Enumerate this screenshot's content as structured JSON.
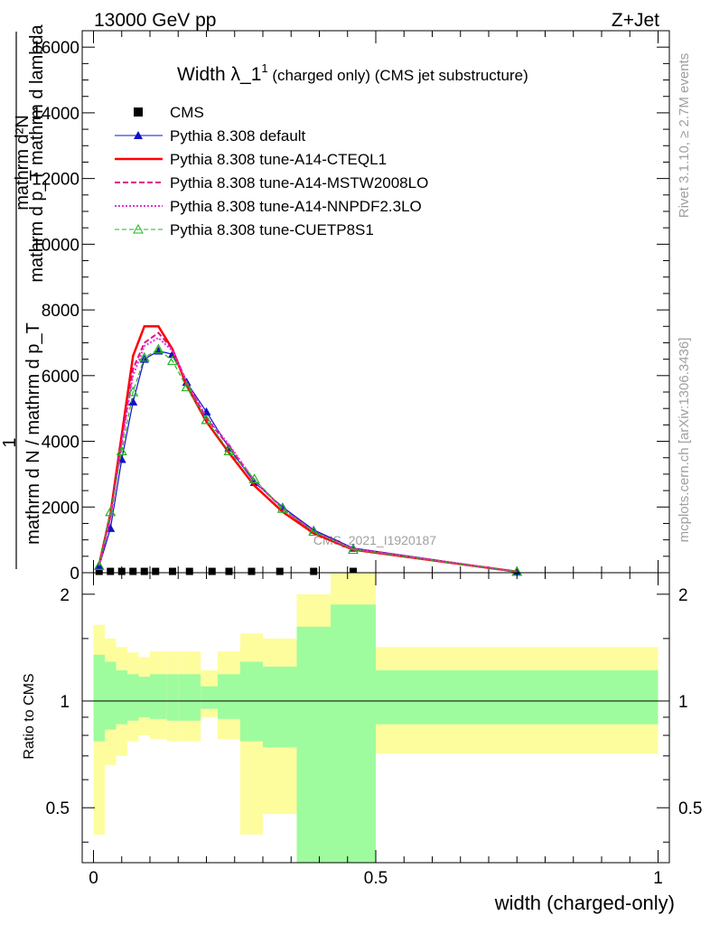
{
  "header": {
    "energy": "13000 GeV pp",
    "process": "Z+Jet"
  },
  "side_labels": {
    "rivet": "Rivet 3.1.10, ≥ 2.7M events",
    "mcplots": "mcplots.cern.ch [arXiv:1306.3436]"
  },
  "chart_data": [
    {
      "type": "line",
      "title_main": "Width λ_1",
      "title_sup": "1",
      "title_sub": " (charged only) (CMS jet substructure)",
      "watermark": "CMS_2021_I1920187",
      "ylabel_numerator": "mathrm d²N",
      "ylabel_numerator_sub": "mathrm d p_T mathrm d lambda",
      "ylabel_denominator": "mathrm d N / mathrm d p_T",
      "ylabel_one": "1",
      "xlim": [
        -0.02,
        1.02
      ],
      "ylim": [
        0,
        16500
      ],
      "yticks": [
        0,
        2000,
        4000,
        6000,
        8000,
        10000,
        12000,
        14000,
        16000
      ],
      "ytick_labels": [
        "0",
        "2000",
        "4000",
        "6000",
        "8000",
        "10000",
        "12000",
        "14000",
        "16000"
      ],
      "legend_position": "top-left",
      "series": [
        {
          "name": "CMS",
          "color": "#000000",
          "style": "marker-square",
          "x": [
            0.01,
            0.03,
            0.05,
            0.07,
            0.09,
            0.11,
            0.14,
            0.17,
            0.21,
            0.24,
            0.28,
            0.33,
            0.39,
            0.46
          ],
          "y": [
            40,
            40,
            40,
            40,
            40,
            40,
            40,
            40,
            40,
            40,
            40,
            40,
            40,
            40
          ]
        },
        {
          "name": "Pythia 8.308 default",
          "color": "#1010c8",
          "style": "line-triangle",
          "x": [
            0.01,
            0.03,
            0.05,
            0.07,
            0.09,
            0.115,
            0.14,
            0.165,
            0.2,
            0.24,
            0.285,
            0.335,
            0.39,
            0.46,
            0.75
          ],
          "y": [
            200,
            1350,
            3450,
            5200,
            6500,
            6750,
            6650,
            5800,
            4900,
            3800,
            2750,
            2000,
            1300,
            750,
            30
          ]
        },
        {
          "name": "Pythia 8.308 tune-A14-CTEQL1",
          "color": "#ff0000",
          "style": "line-thick",
          "x": [
            0.01,
            0.03,
            0.05,
            0.07,
            0.09,
            0.115,
            0.14,
            0.165,
            0.2,
            0.24,
            0.285,
            0.335,
            0.39,
            0.46,
            0.75
          ],
          "y": [
            250,
            1800,
            4200,
            6600,
            7500,
            7500,
            6800,
            5700,
            4600,
            3650,
            2650,
            1850,
            1200,
            700,
            30
          ]
        },
        {
          "name": "Pythia 8.308 tune-A14-MSTW2008LO",
          "color": "#e0108c",
          "style": "line-dashed",
          "x": [
            0.01,
            0.03,
            0.05,
            0.07,
            0.09,
            0.115,
            0.14,
            0.165,
            0.2,
            0.24,
            0.285,
            0.335,
            0.39,
            0.46,
            0.75
          ],
          "y": [
            230,
            1700,
            4000,
            6200,
            7000,
            7300,
            6800,
            5800,
            4700,
            3850,
            2800,
            1950,
            1250,
            730,
            30
          ]
        },
        {
          "name": "Pythia 8.308 tune-A14-NNPDF2.3LO",
          "color": "#e832d2",
          "style": "line-dotted",
          "x": [
            0.01,
            0.03,
            0.05,
            0.07,
            0.09,
            0.115,
            0.14,
            0.165,
            0.2,
            0.24,
            0.285,
            0.335,
            0.39,
            0.46,
            0.75
          ],
          "y": [
            220,
            1650,
            3950,
            6000,
            6900,
            7150,
            6750,
            5800,
            4750,
            3900,
            2800,
            1950,
            1250,
            720,
            30
          ]
        },
        {
          "name": "Pythia 8.308 tune-CUETP8S1",
          "color": "#22b422",
          "style": "dashed-open-triangle",
          "x": [
            0.01,
            0.03,
            0.05,
            0.07,
            0.09,
            0.115,
            0.14,
            0.165,
            0.2,
            0.24,
            0.285,
            0.335,
            0.39,
            0.46,
            0.75
          ],
          "y": [
            210,
            1850,
            3700,
            5500,
            6550,
            6800,
            6450,
            5650,
            4650,
            3700,
            2850,
            1950,
            1250,
            700,
            30
          ]
        }
      ]
    },
    {
      "type": "area",
      "ylabel": "Ratio to CMS",
      "xlabel": "width (charged-only)",
      "xlim": [
        -0.02,
        1.02
      ],
      "xticks": [
        0,
        0.5,
        1
      ],
      "xtick_labels": [
        "0",
        "0.5",
        "1"
      ],
      "ylim": [
        0.35,
        2.3
      ],
      "yticks": [
        0.5,
        1,
        2
      ],
      "ytick_labels": [
        "0.5",
        "1",
        "2"
      ],
      "reference_line": 1,
      "bands": {
        "bin_edges": [
          0,
          0.02,
          0.04,
          0.06,
          0.08,
          0.1,
          0.13,
          0.15,
          0.19,
          0.22,
          0.26,
          0.3,
          0.36,
          0.42,
          0.5,
          1.0
        ],
        "green_low": [
          0.77,
          0.83,
          0.86,
          0.88,
          0.9,
          0.89,
          0.88,
          0.88,
          0.95,
          0.89,
          0.77,
          0.74,
          0.35,
          0.35,
          0.86
        ],
        "green_high": [
          1.35,
          1.29,
          1.22,
          1.19,
          1.17,
          1.19,
          1.19,
          1.19,
          1.1,
          1.19,
          1.29,
          1.25,
          1.62,
          1.87,
          1.22
        ],
        "yellow_low": [
          0.42,
          0.66,
          0.7,
          0.77,
          0.8,
          0.78,
          0.77,
          0.77,
          0.9,
          0.78,
          0.42,
          0.48,
          0.35,
          0.35,
          0.71
        ],
        "yellow_high": [
          1.64,
          1.5,
          1.42,
          1.37,
          1.33,
          1.38,
          1.38,
          1.38,
          1.22,
          1.38,
          1.55,
          1.5,
          2.0,
          2.3,
          1.42
        ]
      },
      "colors": {
        "green": "#9efc9e",
        "yellow": "#fdfd9e"
      }
    }
  ]
}
